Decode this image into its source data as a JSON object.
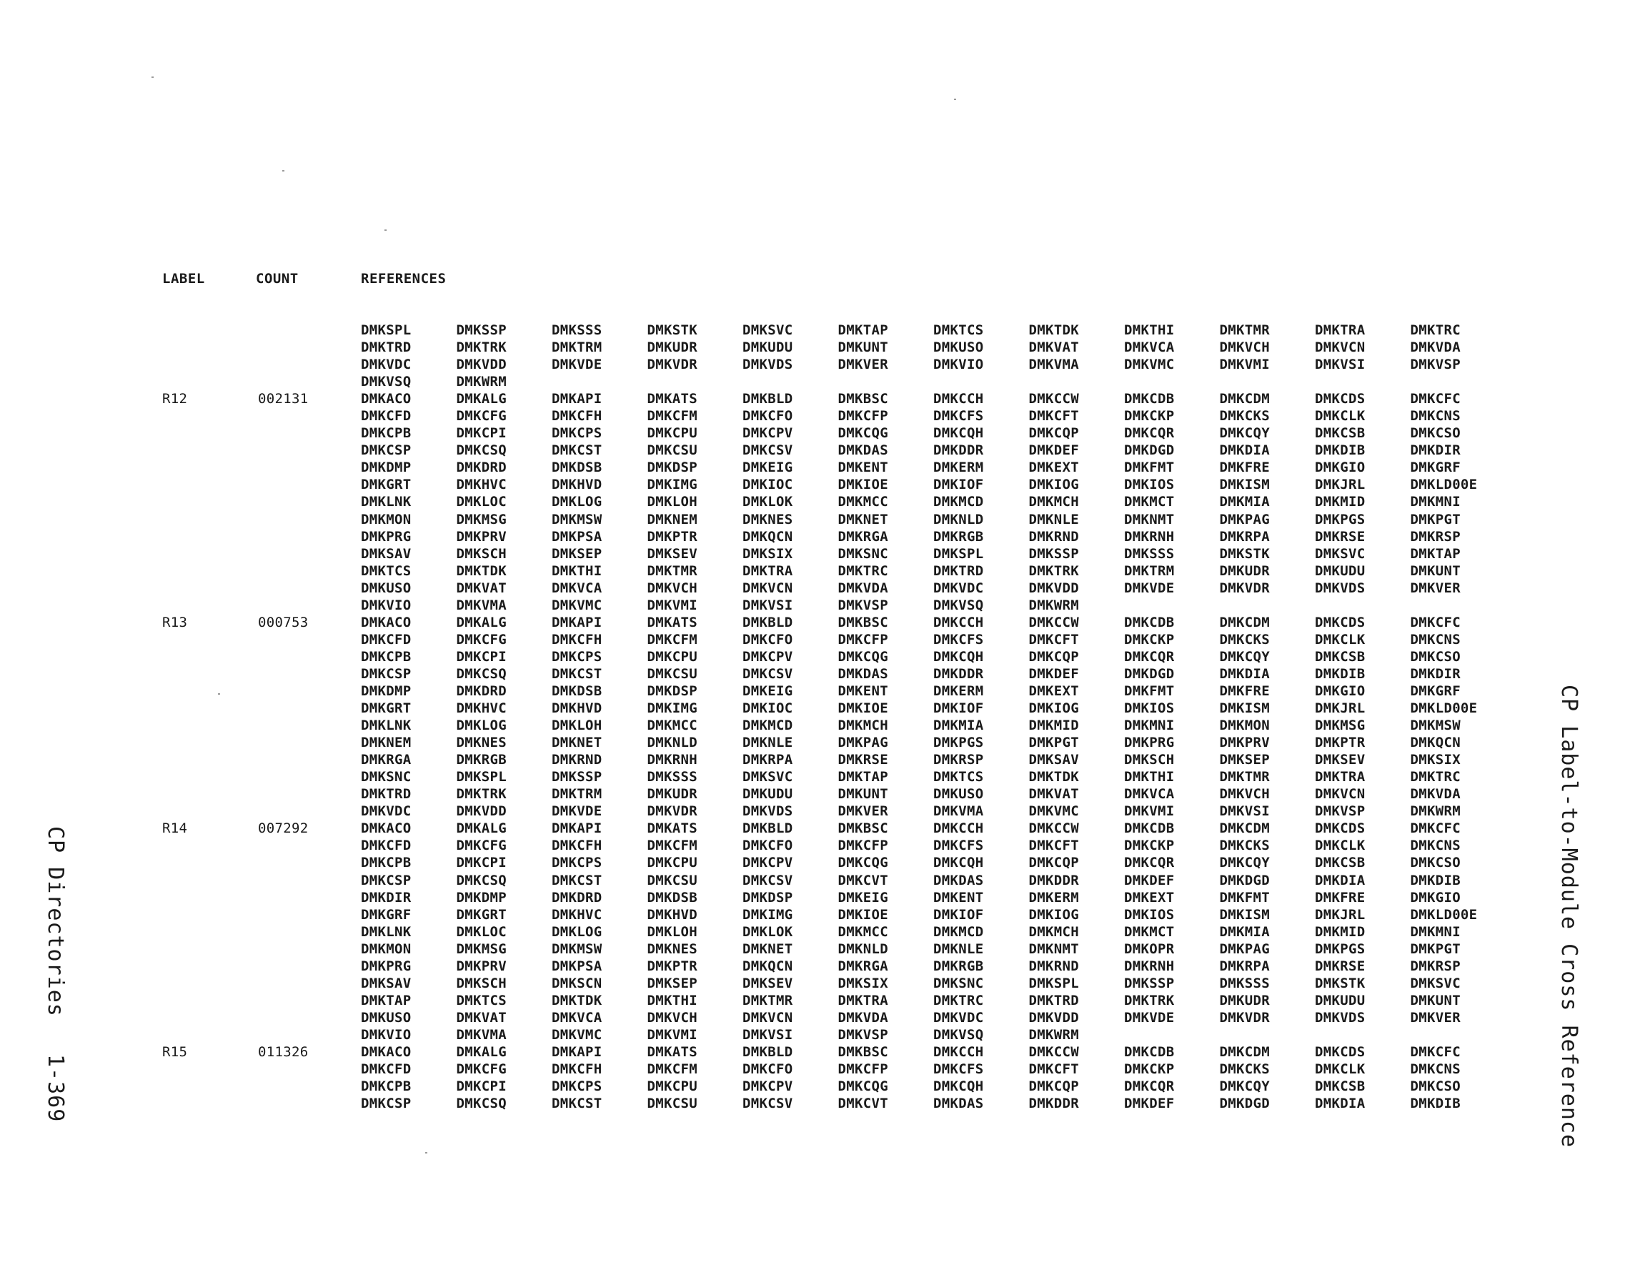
{
  "header": {
    "label": "LABEL",
    "count": "COUNT",
    "references": "REFERENCES"
  },
  "rows": [
    {
      "label": "",
      "count": "",
      "refs": [
        "DMKSPL",
        "DMKSSP",
        "DMKSSS",
        "DMKSTK",
        "DMKSVC",
        "DMKTAP",
        "DMKTCS",
        "DMKTDK",
        "DMKTHI",
        "DMKTMR",
        "DMKTRA",
        "DMKTRC"
      ]
    },
    {
      "label": "",
      "count": "",
      "refs": [
        "DMKTRD",
        "DMKTRK",
        "DMKTRM",
        "DMKUDR",
        "DMKUDU",
        "DMKUNT",
        "DMKUSO",
        "DMKVAT",
        "DMKVCA",
        "DMKVCH",
        "DMKVCN",
        "DMKVDA"
      ]
    },
    {
      "label": "",
      "count": "",
      "refs": [
        "DMKVDC",
        "DMKVDD",
        "DMKVDE",
        "DMKVDR",
        "DMKVDS",
        "DMKVER",
        "DMKVIO",
        "DMKVMA",
        "DMKVMC",
        "DMKVMI",
        "DMKVSI",
        "DMKVSP"
      ]
    },
    {
      "label": "",
      "count": "",
      "refs": [
        "DMKVSQ",
        "DMKWRM"
      ]
    },
    {
      "label": "R12",
      "count": "002131",
      "refs": [
        "DMKACO",
        "DMKALG",
        "DMKAPI",
        "DMKATS",
        "DMKBLD",
        "DMKBSC",
        "DMKCCH",
        "DMKCCW",
        "DMKCDB",
        "DMKCDM",
        "DMKCDS",
        "DMKCFC"
      ]
    },
    {
      "label": "",
      "count": "",
      "refs": [
        "DMKCFD",
        "DMKCFG",
        "DMKCFH",
        "DMKCFM",
        "DMKCFO",
        "DMKCFP",
        "DMKCFS",
        "DMKCFT",
        "DMKCKP",
        "DMKCKS",
        "DMKCLK",
        "DMKCNS"
      ]
    },
    {
      "label": "",
      "count": "",
      "refs": [
        "DMKCPB",
        "DMKCPI",
        "DMKCPS",
        "DMKCPU",
        "DMKCPV",
        "DMKCQG",
        "DMKCQH",
        "DMKCQP",
        "DMKCQR",
        "DMKCQY",
        "DMKCSB",
        "DMKCSO"
      ]
    },
    {
      "label": "",
      "count": "",
      "refs": [
        "DMKCSP",
        "DMKCSQ",
        "DMKCST",
        "DMKCSU",
        "DMKCSV",
        "DMKDAS",
        "DMKDDR",
        "DMKDEF",
        "DMKDGD",
        "DMKDIA",
        "DMKDIB",
        "DMKDIR"
      ]
    },
    {
      "label": "",
      "count": "",
      "refs": [
        "DMKDMP",
        "DMKDRD",
        "DMKDSB",
        "DMKDSP",
        "DMKEIG",
        "DMKENT",
        "DMKERM",
        "DMKEXT",
        "DMKFMT",
        "DMKFRE",
        "DMKGIO",
        "DMKGRF"
      ]
    },
    {
      "label": "",
      "count": "",
      "refs": [
        "DMKGRT",
        "DMKHVC",
        "DMKHVD",
        "DMKIMG",
        "DMKIOC",
        "DMKIOE",
        "DMKIOF",
        "DMKIOG",
        "DMKIOS",
        "DMKISM",
        "DMKJRL",
        "DMKLD00E"
      ]
    },
    {
      "label": "",
      "count": "",
      "refs": [
        "DMKLNK",
        "DMKLOC",
        "DMKLOG",
        "DMKLOH",
        "DMKLOK",
        "DMKMCC",
        "DMKMCD",
        "DMKMCH",
        "DMKMCT",
        "DMKMIA",
        "DMKMID",
        "DMKMNI"
      ]
    },
    {
      "label": "",
      "count": "",
      "refs": [
        "DMKMON",
        "DMKMSG",
        "DMKMSW",
        "DMKNEM",
        "DMKNES",
        "DMKNET",
        "DMKNLD",
        "DMKNLE",
        "DMKNMT",
        "DMKPAG",
        "DMKPGS",
        "DMKPGT"
      ]
    },
    {
      "label": "",
      "count": "",
      "refs": [
        "DMKPRG",
        "DMKPRV",
        "DMKPSA",
        "DMKPTR",
        "DMKQCN",
        "DMKRGA",
        "DMKRGB",
        "DMKRND",
        "DMKRNH",
        "DMKRPA",
        "DMKRSE",
        "DMKRSP"
      ]
    },
    {
      "label": "",
      "count": "",
      "refs": [
        "DMKSAV",
        "DMKSCH",
        "DMKSEP",
        "DMKSEV",
        "DMKSIX",
        "DMKSNC",
        "DMKSPL",
        "DMKSSP",
        "DMKSSS",
        "DMKSTK",
        "DMKSVC",
        "DMKTAP"
      ]
    },
    {
      "label": "",
      "count": "",
      "refs": [
        "DMKTCS",
        "DMKTDK",
        "DMKTHI",
        "DMKTMR",
        "DMKTRA",
        "DMKTRC",
        "DMKTRD",
        "DMKTRK",
        "DMKTRM",
        "DMKUDR",
        "DMKUDU",
        "DMKUNT"
      ]
    },
    {
      "label": "",
      "count": "",
      "refs": [
        "DMKUSO",
        "DMKVAT",
        "DMKVCA",
        "DMKVCH",
        "DMKVCN",
        "DMKVDA",
        "DMKVDC",
        "DMKVDD",
        "DMKVDE",
        "DMKVDR",
        "DMKVDS",
        "DMKVER"
      ]
    },
    {
      "label": "",
      "count": "",
      "refs": [
        "DMKVIO",
        "DMKVMA",
        "DMKVMC",
        "DMKVMI",
        "DMKVSI",
        "DMKVSP",
        "DMKVSQ",
        "DMKWRM"
      ]
    },
    {
      "label": "R13",
      "count": "000753",
      "refs": [
        "DMKACO",
        "DMKALG",
        "DMKAPI",
        "DMKATS",
        "DMKBLD",
        "DMKBSC",
        "DMKCCH",
        "DMKCCW",
        "DMKCDB",
        "DMKCDM",
        "DMKCDS",
        "DMKCFC"
      ]
    },
    {
      "label": "",
      "count": "",
      "refs": [
        "DMKCFD",
        "DMKCFG",
        "DMKCFH",
        "DMKCFM",
        "DMKCFO",
        "DMKCFP",
        "DMKCFS",
        "DMKCFT",
        "DMKCKP",
        "DMKCKS",
        "DMKCLK",
        "DMKCNS"
      ]
    },
    {
      "label": "",
      "count": "",
      "refs": [
        "DMKCPB",
        "DMKCPI",
        "DMKCPS",
        "DMKCPU",
        "DMKCPV",
        "DMKCQG",
        "DMKCQH",
        "DMKCQP",
        "DMKCQR",
        "DMKCQY",
        "DMKCSB",
        "DMKCSO"
      ]
    },
    {
      "label": "",
      "count": "",
      "refs": [
        "DMKCSP",
        "DMKCSQ",
        "DMKCST",
        "DMKCSU",
        "DMKCSV",
        "DMKDAS",
        "DMKDDR",
        "DMKDEF",
        "DMKDGD",
        "DMKDIA",
        "DMKDIB",
        "DMKDIR"
      ]
    },
    {
      "label": "",
      "count": "",
      "refs": [
        "DMKDMP",
        "DMKDRD",
        "DMKDSB",
        "DMKDSP",
        "DMKEIG",
        "DMKENT",
        "DMKERM",
        "DMKEXT",
        "DMKFMT",
        "DMKFRE",
        "DMKGIO",
        "DMKGRF"
      ]
    },
    {
      "label": "",
      "count": "",
      "refs": [
        "DMKGRT",
        "DMKHVC",
        "DMKHVD",
        "DMKIMG",
        "DMKIOC",
        "DMKIOE",
        "DMKIOF",
        "DMKIOG",
        "DMKIOS",
        "DMKISM",
        "DMKJRL",
        "DMKLD00E"
      ]
    },
    {
      "label": "",
      "count": "",
      "refs": [
        "DMKLNK",
        "DMKLOG",
        "DMKLOH",
        "DMKMCC",
        "DMKMCD",
        "DMKMCH",
        "DMKMIA",
        "DMKMID",
        "DMKMNI",
        "DMKMON",
        "DMKMSG",
        "DMKMSW"
      ]
    },
    {
      "label": "",
      "count": "",
      "refs": [
        "DMKNEM",
        "DMKNES",
        "DMKNET",
        "DMKNLD",
        "DMKNLE",
        "DMKPAG",
        "DMKPGS",
        "DMKPGT",
        "DMKPRG",
        "DMKPRV",
        "DMKPTR",
        "DMKQCN"
      ]
    },
    {
      "label": "",
      "count": "",
      "refs": [
        "DMKRGA",
        "DMKRGB",
        "DMKRND",
        "DMKRNH",
        "DMKRPA",
        "DMKRSE",
        "DMKRSP",
        "DMKSAV",
        "DMKSCH",
        "DMKSEP",
        "DMKSEV",
        "DMKSIX"
      ]
    },
    {
      "label": "",
      "count": "",
      "refs": [
        "DMKSNC",
        "DMKSPL",
        "DMKSSP",
        "DMKSSS",
        "DMKSVC",
        "DMKTAP",
        "DMKTCS",
        "DMKTDK",
        "DMKTHI",
        "DMKTMR",
        "DMKTRA",
        "DMKTRC"
      ]
    },
    {
      "label": "",
      "count": "",
      "refs": [
        "DMKTRD",
        "DMKTRK",
        "DMKTRM",
        "DMKUDR",
        "DMKUDU",
        "DMKUNT",
        "DMKUSO",
        "DMKVAT",
        "DMKVCA",
        "DMKVCH",
        "DMKVCN",
        "DMKVDA"
      ]
    },
    {
      "label": "",
      "count": "",
      "refs": [
        "DMKVDC",
        "DMKVDD",
        "DMKVDE",
        "DMKVDR",
        "DMKVDS",
        "DMKVER",
        "DMKVMA",
        "DMKVMC",
        "DMKVMI",
        "DMKVSI",
        "DMKVSP",
        "DMKWRM"
      ]
    },
    {
      "label": "R14",
      "count": "007292",
      "refs": [
        "DMKACO",
        "DMKALG",
        "DMKAPI",
        "DMKATS",
        "DMKBLD",
        "DMKBSC",
        "DMKCCH",
        "DMKCCW",
        "DMKCDB",
        "DMKCDM",
        "DMKCDS",
        "DMKCFC"
      ]
    },
    {
      "label": "",
      "count": "",
      "refs": [
        "DMKCFD",
        "DMKCFG",
        "DMKCFH",
        "DMKCFM",
        "DMKCFO",
        "DMKCFP",
        "DMKCFS",
        "DMKCFT",
        "DMKCKP",
        "DMKCKS",
        "DMKCLK",
        "DMKCNS"
      ]
    },
    {
      "label": "",
      "count": "",
      "refs": [
        "DMKCPB",
        "DMKCPI",
        "DMKCPS",
        "DMKCPU",
        "DMKCPV",
        "DMKCQG",
        "DMKCQH",
        "DMKCQP",
        "DMKCQR",
        "DMKCQY",
        "DMKCSB",
        "DMKCSO"
      ]
    },
    {
      "label": "",
      "count": "",
      "refs": [
        "DMKCSP",
        "DMKCSQ",
        "DMKCST",
        "DMKCSU",
        "DMKCSV",
        "DMKCVT",
        "DMKDAS",
        "DMKDDR",
        "DMKDEF",
        "DMKDGD",
        "DMKDIA",
        "DMKDIB"
      ]
    },
    {
      "label": "",
      "count": "",
      "refs": [
        "DMKDIR",
        "DMKDMP",
        "DMKDRD",
        "DMKDSB",
        "DMKDSP",
        "DMKEIG",
        "DMKENT",
        "DMKERM",
        "DMKEXT",
        "DMKFMT",
        "DMKFRE",
        "DMKGIO"
      ]
    },
    {
      "label": "",
      "count": "",
      "refs": [
        "DMKGRF",
        "DMKGRT",
        "DMKHVC",
        "DMKHVD",
        "DMKIMG",
        "DMKIOE",
        "DMKIOF",
        "DMKIOG",
        "DMKIOS",
        "DMKISM",
        "DMKJRL",
        "DMKLD00E"
      ]
    },
    {
      "label": "",
      "count": "",
      "refs": [
        "DMKLNK",
        "DMKLOC",
        "DMKLOG",
        "DMKLOH",
        "DMKLOK",
        "DMKMCC",
        "DMKMCD",
        "DMKMCH",
        "DMKMCT",
        "DMKMIA",
        "DMKMID",
        "DMKMNI"
      ]
    },
    {
      "label": "",
      "count": "",
      "refs": [
        "DMKMON",
        "DMKMSG",
        "DMKMSW",
        "DMKNES",
        "DMKNET",
        "DMKNLD",
        "DMKNLE",
        "DMKNMT",
        "DMKOPR",
        "DMKPAG",
        "DMKPGS",
        "DMKPGT"
      ]
    },
    {
      "label": "",
      "count": "",
      "refs": [
        "DMKPRG",
        "DMKPRV",
        "DMKPSA",
        "DMKPTR",
        "DMKQCN",
        "DMKRGA",
        "DMKRGB",
        "DMKRND",
        "DMKRNH",
        "DMKRPA",
        "DMKRSE",
        "DMKRSP"
      ]
    },
    {
      "label": "",
      "count": "",
      "refs": [
        "DMKSAV",
        "DMKSCH",
        "DMKSCN",
        "DMKSEP",
        "DMKSEV",
        "DMKSIX",
        "DMKSNC",
        "DMKSPL",
        "DMKSSP",
        "DMKSSS",
        "DMKSTK",
        "DMKSVC"
      ]
    },
    {
      "label": "",
      "count": "",
      "refs": [
        "DMKTAP",
        "DMKTCS",
        "DMKTDK",
        "DMKTHI",
        "DMKTMR",
        "DMKTRA",
        "DMKTRC",
        "DMKTRD",
        "DMKTRK",
        "DMKUDR",
        "DMKUDU",
        "DMKUNT"
      ]
    },
    {
      "label": "",
      "count": "",
      "refs": [
        "DMKUSO",
        "DMKVAT",
        "DMKVCA",
        "DMKVCH",
        "DMKVCN",
        "DMKVDA",
        "DMKVDC",
        "DMKVDD",
        "DMKVDE",
        "DMKVDR",
        "DMKVDS",
        "DMKVER"
      ]
    },
    {
      "label": "",
      "count": "",
      "refs": [
        "DMKVIO",
        "DMKVMA",
        "DMKVMC",
        "DMKVMI",
        "DMKVSI",
        "DMKVSP",
        "DMKVSQ",
        "DMKWRM"
      ]
    },
    {
      "label": "R15",
      "count": "011326",
      "refs": [
        "DMKACO",
        "DMKALG",
        "DMKAPI",
        "DMKATS",
        "DMKBLD",
        "DMKBSC",
        "DMKCCH",
        "DMKCCW",
        "DMKCDB",
        "DMKCDM",
        "DMKCDS",
        "DMKCFC"
      ]
    },
    {
      "label": "",
      "count": "",
      "refs": [
        "DMKCFD",
        "DMKCFG",
        "DMKCFH",
        "DMKCFM",
        "DMKCFO",
        "DMKCFP",
        "DMKCFS",
        "DMKCFT",
        "DMKCKP",
        "DMKCKS",
        "DMKCLK",
        "DMKCNS"
      ]
    },
    {
      "label": "",
      "count": "",
      "refs": [
        "DMKCPB",
        "DMKCPI",
        "DMKCPS",
        "DMKCPU",
        "DMKCPV",
        "DMKCQG",
        "DMKCQH",
        "DMKCQP",
        "DMKCQR",
        "DMKCQY",
        "DMKCSB",
        "DMKCSO"
      ]
    },
    {
      "label": "",
      "count": "",
      "refs": [
        "DMKCSP",
        "DMKCSQ",
        "DMKCST",
        "DMKCSU",
        "DMKCSV",
        "DMKCVT",
        "DMKDAS",
        "DMKDDR",
        "DMKDEF",
        "DMKDGD",
        "DMKDIA",
        "DMKDIB"
      ]
    }
  ],
  "side_left": {
    "title": "CP Directories",
    "page_number": "1-369"
  },
  "side_right": {
    "title": "CP Label-to-Module Cross Reference"
  }
}
